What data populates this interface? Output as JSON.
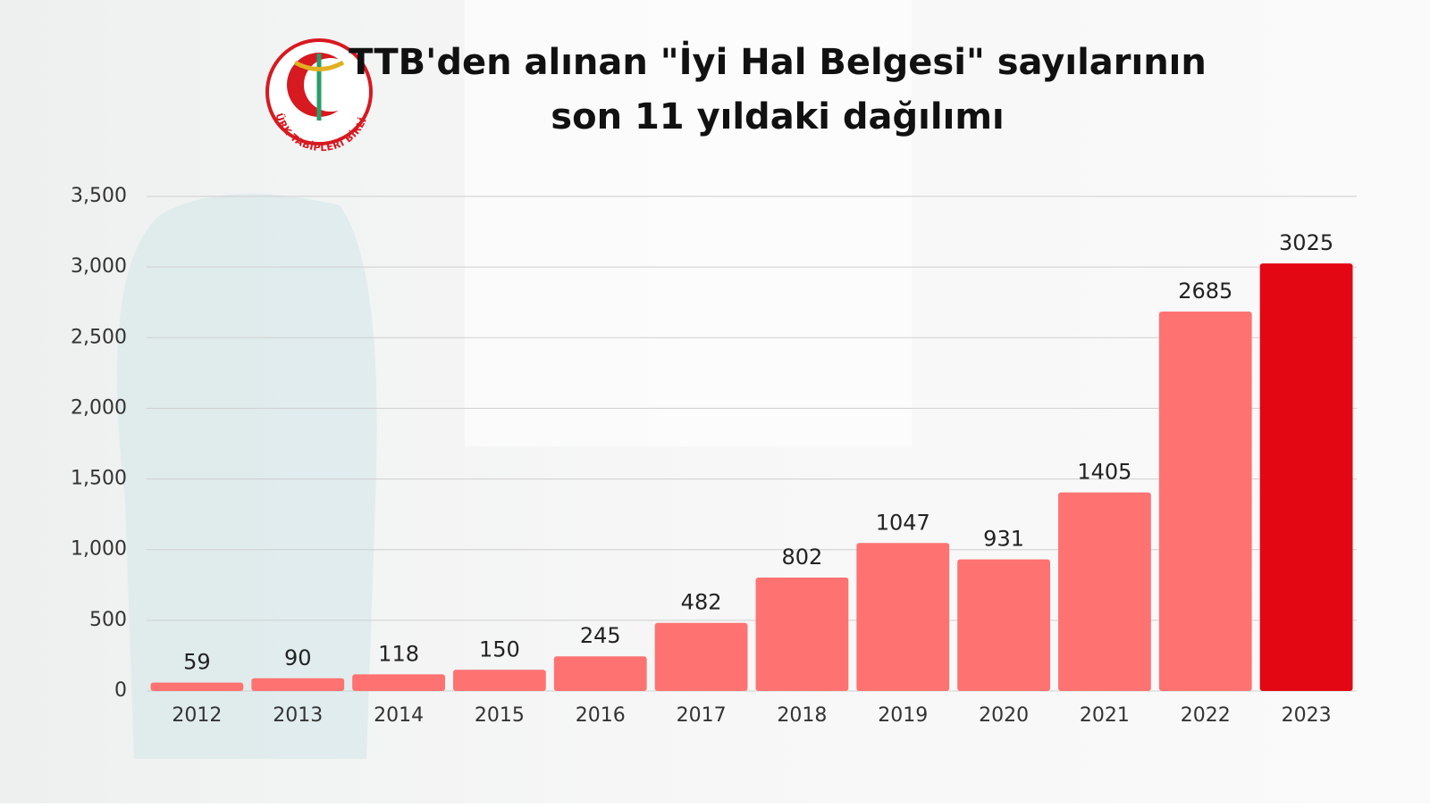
{
  "chart_data": {
    "type": "bar",
    "title": [
      "TTB'den alınan \"İyi Hal Belgesi\" sayılarının",
      "son 11 yıldaki dağılımı"
    ],
    "logo_text": "TÜRK TABİPLERİ BİRLİĞİ",
    "categories": [
      "2012",
      "2013",
      "2014",
      "2015",
      "2016",
      "2017",
      "2018",
      "2019",
      "2020",
      "2021",
      "2022",
      "2023"
    ],
    "values": [
      59,
      90,
      118,
      150,
      245,
      482,
      802,
      1047,
      931,
      1405,
      2685,
      3025
    ],
    "colors": [
      "#ff7272",
      "#ff7272",
      "#ff7272",
      "#ff7272",
      "#ff7272",
      "#ff7272",
      "#ff7272",
      "#ff7272",
      "#ff7272",
      "#ff7272",
      "#ff7272",
      "#e30613"
    ],
    "ylim": [
      0,
      3500
    ],
    "yticks": [
      0,
      500,
      {
        "value": 1000,
        "label": "1,000"
      },
      {
        "value": 1500,
        "label": "1,500"
      },
      {
        "value": 2000,
        "label": "2,000"
      },
      {
        "value": 2500,
        "label": "2,500"
      },
      {
        "value": 3000,
        "label": "3,000"
      },
      {
        "value": 3500,
        "label": "3,500"
      }
    ],
    "grid": true
  }
}
